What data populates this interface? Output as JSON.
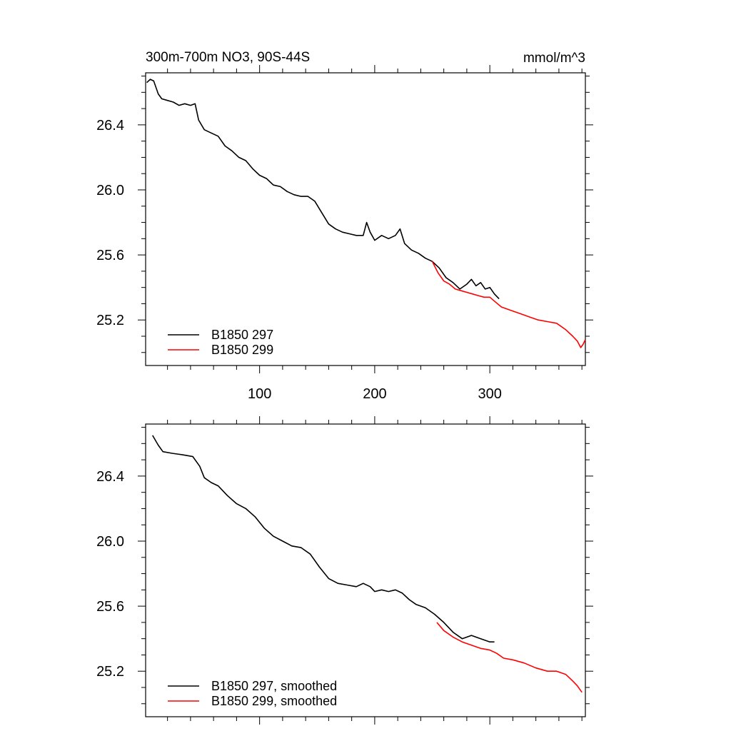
{
  "chart_data": [
    {
      "type": "line",
      "title_left": "300m-700m NO3, 90S-44S",
      "title_right": "mmol/m^3",
      "xlim": [
        1,
        383
      ],
      "ylim": [
        24.92,
        26.72
      ],
      "xticks": [
        100,
        200,
        300
      ],
      "xtick_labels": [
        "100",
        "200",
        "300"
      ],
      "yticks": [
        25.2,
        25.6,
        26.0,
        26.4
      ],
      "ytick_labels": [
        "25.2",
        "25.6",
        "26.0",
        "26.4"
      ],
      "legend": [
        "B1850 297",
        "B1850 299"
      ],
      "legend_position": "bottom-left",
      "series": [
        {
          "name": "B1850 297",
          "color": "#000000",
          "x": [
            2,
            5,
            8,
            12,
            15,
            20,
            25,
            30,
            35,
            40,
            44,
            47,
            52,
            58,
            64,
            70,
            76,
            82,
            88,
            94,
            100,
            106,
            112,
            118,
            124,
            130,
            136,
            142,
            148,
            154,
            160,
            166,
            172,
            178,
            184,
            190,
            193,
            196,
            200,
            206,
            212,
            218,
            222,
            226,
            232,
            238,
            244,
            250,
            256,
            262,
            268,
            274,
            280,
            284,
            288,
            292,
            296,
            300,
            304,
            308
          ],
          "y": [
            26.66,
            26.68,
            26.67,
            26.59,
            26.56,
            26.55,
            26.54,
            26.52,
            26.53,
            26.52,
            26.53,
            26.43,
            26.37,
            26.35,
            26.33,
            26.27,
            26.24,
            26.2,
            26.18,
            26.13,
            26.09,
            26.07,
            26.03,
            26.02,
            25.99,
            25.97,
            25.96,
            25.96,
            25.93,
            25.86,
            25.79,
            25.76,
            25.74,
            25.73,
            25.72,
            25.72,
            25.8,
            25.74,
            25.69,
            25.72,
            25.7,
            25.72,
            25.76,
            25.67,
            25.63,
            25.61,
            25.58,
            25.56,
            25.52,
            25.46,
            25.43,
            25.39,
            25.42,
            25.45,
            25.41,
            25.43,
            25.39,
            25.4,
            25.36,
            25.33
          ]
        },
        {
          "name": "B1850 299",
          "color": "#ff0000",
          "x": [
            250,
            255,
            260,
            265,
            270,
            275,
            280,
            285,
            290,
            295,
            300,
            305,
            310,
            318,
            326,
            334,
            342,
            350,
            358,
            366,
            372,
            376,
            379,
            381,
            383
          ],
          "y": [
            25.56,
            25.49,
            25.44,
            25.42,
            25.39,
            25.38,
            25.37,
            25.36,
            25.35,
            25.34,
            25.34,
            25.31,
            25.28,
            25.26,
            25.24,
            25.22,
            25.2,
            25.19,
            25.18,
            25.14,
            25.1,
            25.07,
            25.03,
            25.05,
            25.08
          ]
        }
      ]
    },
    {
      "type": "line",
      "xlim": [
        1,
        383
      ],
      "ylim": [
        24.92,
        26.72
      ],
      "xticks": [
        100,
        200,
        300
      ],
      "yticks": [
        25.2,
        25.6,
        26.0,
        26.4
      ],
      "ytick_labels": [
        "25.2",
        "25.6",
        "26.0",
        "26.4"
      ],
      "legend": [
        "B1850 297, smoothed",
        "B1850 299, smoothed"
      ],
      "legend_position": "bottom-left",
      "series": [
        {
          "name": "B1850 297, smoothed",
          "color": "#000000",
          "x": [
            7,
            12,
            16,
            24,
            34,
            42,
            48,
            52,
            58,
            64,
            72,
            80,
            88,
            96,
            104,
            112,
            120,
            128,
            136,
            144,
            152,
            160,
            168,
            176,
            184,
            190,
            196,
            200,
            206,
            212,
            218,
            224,
            230,
            236,
            244,
            252,
            260,
            268,
            276,
            284,
            292,
            300,
            304
          ],
          "y": [
            26.65,
            26.59,
            26.55,
            26.54,
            26.53,
            26.52,
            26.46,
            26.39,
            26.36,
            26.34,
            26.28,
            26.23,
            26.2,
            26.15,
            26.08,
            26.03,
            26.0,
            25.97,
            25.96,
            25.92,
            25.84,
            25.77,
            25.74,
            25.73,
            25.72,
            25.74,
            25.72,
            25.69,
            25.7,
            25.69,
            25.7,
            25.68,
            25.64,
            25.61,
            25.59,
            25.55,
            25.5,
            25.44,
            25.4,
            25.42,
            25.4,
            25.38,
            25.38
          ]
        },
        {
          "name": "B1850 299, smoothed",
          "color": "#ff0000",
          "x": [
            254,
            260,
            268,
            276,
            284,
            292,
            300,
            306,
            312,
            320,
            330,
            340,
            350,
            358,
            366,
            372,
            376,
            380
          ],
          "y": [
            25.5,
            25.45,
            25.41,
            25.38,
            25.36,
            25.34,
            25.33,
            25.31,
            25.28,
            25.27,
            25.25,
            25.22,
            25.2,
            25.2,
            25.18,
            25.14,
            25.11,
            25.07
          ]
        }
      ]
    }
  ]
}
